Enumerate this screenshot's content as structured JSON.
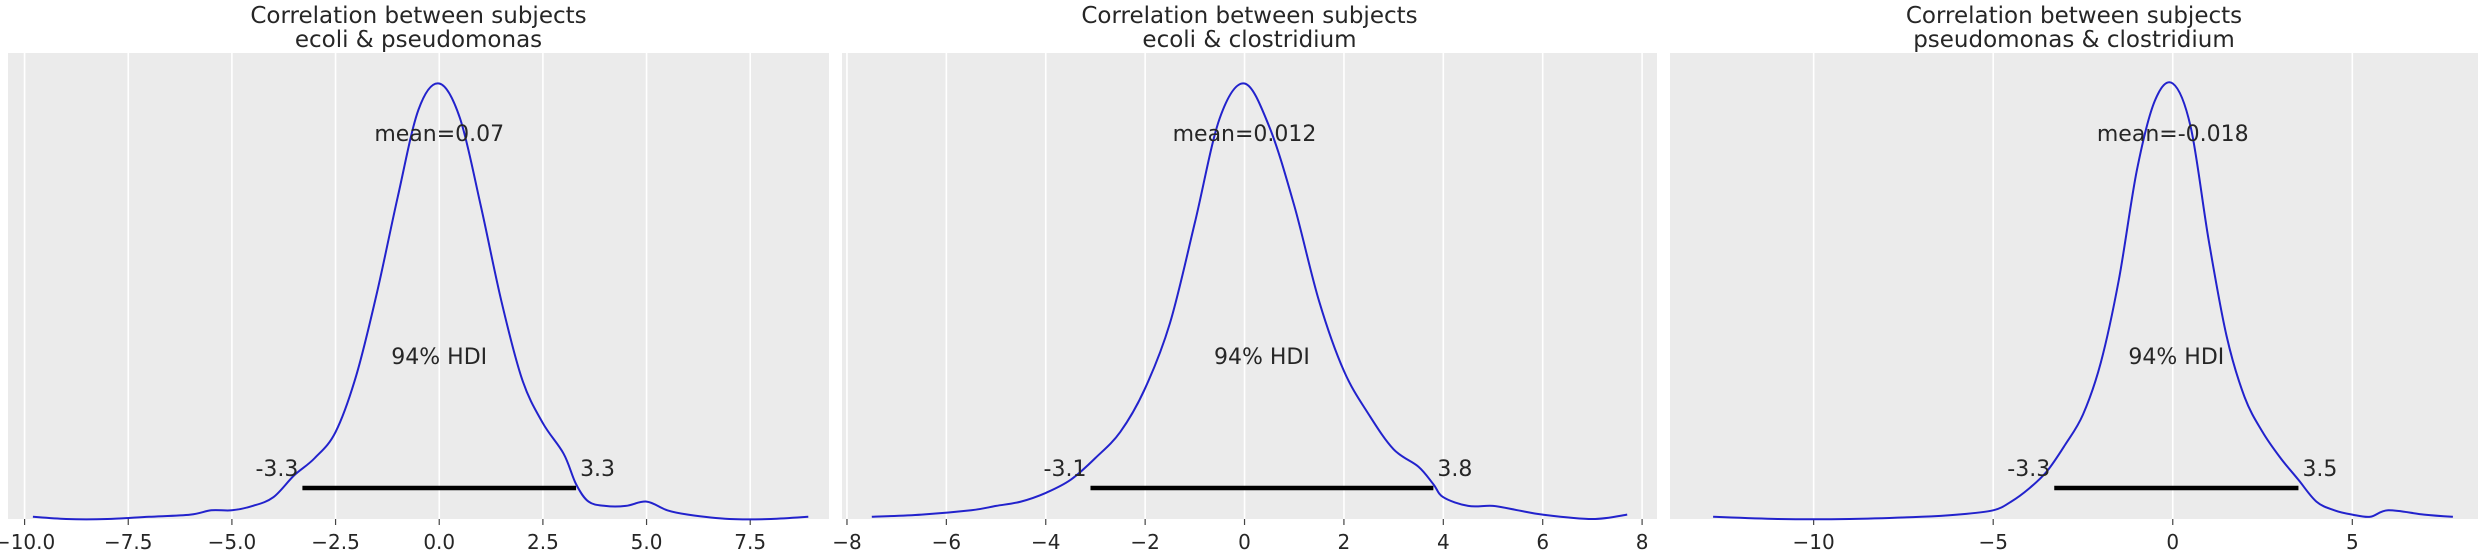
{
  "colors": {
    "panel_bg": "#ebebeb",
    "grid": "#ffffff",
    "curve": "#2222cc",
    "hdi": "#000000"
  },
  "chart_data": [
    {
      "type": "line",
      "title": "Correlation between subjects",
      "subtitle": "ecoli & pseudomonas",
      "xlim": [
        -10.4,
        9.4
      ],
      "ylim": [
        0,
        1.07
      ],
      "xticks": [
        -10.0,
        -7.5,
        -5.0,
        -2.5,
        0.0,
        2.5,
        5.0,
        7.5
      ],
      "xtick_labels": [
        "−10.0",
        "−7.5",
        "−5.0",
        "−2.5",
        "0.0",
        "2.5",
        "5.0",
        "7.5"
      ],
      "mean_label": "mean=0.07",
      "hdi_label": "94% HDI",
      "hdi": [
        -3.3,
        3.3
      ],
      "hdi_labels": [
        "-3.3",
        "3.3"
      ],
      "grid": true,
      "x": [
        -9.8,
        -9.0,
        -8.0,
        -7.0,
        -6.0,
        -5.5,
        -5.0,
        -4.5,
        -4.0,
        -3.5,
        -3.0,
        -2.5,
        -2.0,
        -1.5,
        -1.0,
        -0.5,
        0.0,
        0.5,
        1.0,
        1.5,
        2.0,
        2.5,
        3.0,
        3.3,
        3.6,
        4.0,
        4.5,
        5.0,
        5.5,
        6.0,
        7.0,
        8.0,
        8.9
      ],
      "y": [
        0.005,
        0.0,
        0.0,
        0.005,
        0.01,
        0.02,
        0.02,
        0.03,
        0.05,
        0.1,
        0.14,
        0.2,
        0.33,
        0.52,
        0.74,
        0.94,
        1.0,
        0.92,
        0.72,
        0.5,
        0.32,
        0.22,
        0.15,
        0.08,
        0.04,
        0.03,
        0.03,
        0.04,
        0.02,
        0.01,
        0.0,
        0.0,
        0.005
      ]
    },
    {
      "type": "line",
      "title": "Correlation between subjects",
      "subtitle": "ecoli & clostridium",
      "xlim": [
        -8.1,
        8.3
      ],
      "ylim": [
        0,
        1.07
      ],
      "xticks": [
        -8,
        -6,
        -4,
        -2,
        0,
        2,
        4,
        6,
        8
      ],
      "xtick_labels": [
        "−8",
        "−6",
        "−4",
        "−2",
        "0",
        "2",
        "4",
        "6",
        "8"
      ],
      "mean_label": "mean=0.012",
      "hdi_label": "94% HDI",
      "hdi": [
        -3.1,
        3.8
      ],
      "hdi_labels": [
        "-3.1",
        "3.8"
      ],
      "grid": true,
      "x": [
        -7.5,
        -6.5,
        -5.5,
        -5.0,
        -4.5,
        -4.0,
        -3.5,
        -3.0,
        -2.5,
        -2.0,
        -1.5,
        -1.0,
        -0.5,
        0.0,
        0.5,
        1.0,
        1.5,
        2.0,
        2.5,
        3.0,
        3.5,
        3.8,
        4.0,
        4.5,
        5.0,
        5.5,
        6.0,
        7.0,
        7.7
      ],
      "y": [
        0.005,
        0.01,
        0.02,
        0.03,
        0.04,
        0.06,
        0.09,
        0.14,
        0.2,
        0.3,
        0.45,
        0.68,
        0.92,
        1.0,
        0.9,
        0.72,
        0.5,
        0.34,
        0.24,
        0.16,
        0.12,
        0.08,
        0.05,
        0.03,
        0.03,
        0.02,
        0.01,
        0.0,
        0.01
      ]
    },
    {
      "type": "line",
      "title": "Correlation between subjects",
      "subtitle": "pseudomonas & clostridium",
      "xlim": [
        -14.0,
        8.5
      ],
      "ylim": [
        0,
        1.07
      ],
      "xticks": [
        -10,
        -5,
        0,
        5
      ],
      "xtick_labels": [
        "−10",
        "−5",
        "0",
        "5"
      ],
      "mean_label": "mean=-0.018",
      "hdi_label": "94% HDI",
      "hdi": [
        -3.3,
        3.5
      ],
      "hdi_labels": [
        "-3.3",
        "3.5"
      ],
      "grid": true,
      "x": [
        -12.8,
        -11.0,
        -9.0,
        -7.0,
        -6.0,
        -5.0,
        -4.5,
        -4.0,
        -3.5,
        -3.0,
        -2.5,
        -2.0,
        -1.5,
        -1.0,
        -0.5,
        0.0,
        0.5,
        1.0,
        1.5,
        2.0,
        2.5,
        3.0,
        3.5,
        4.0,
        4.5,
        5.0,
        5.5,
        6.0,
        7.0,
        7.8
      ],
      "y": [
        0.005,
        0.0,
        0.0,
        0.005,
        0.01,
        0.02,
        0.04,
        0.07,
        0.11,
        0.17,
        0.24,
        0.36,
        0.55,
        0.8,
        0.96,
        1.0,
        0.9,
        0.64,
        0.42,
        0.28,
        0.2,
        0.14,
        0.09,
        0.04,
        0.02,
        0.01,
        0.005,
        0.02,
        0.01,
        0.005
      ]
    }
  ]
}
